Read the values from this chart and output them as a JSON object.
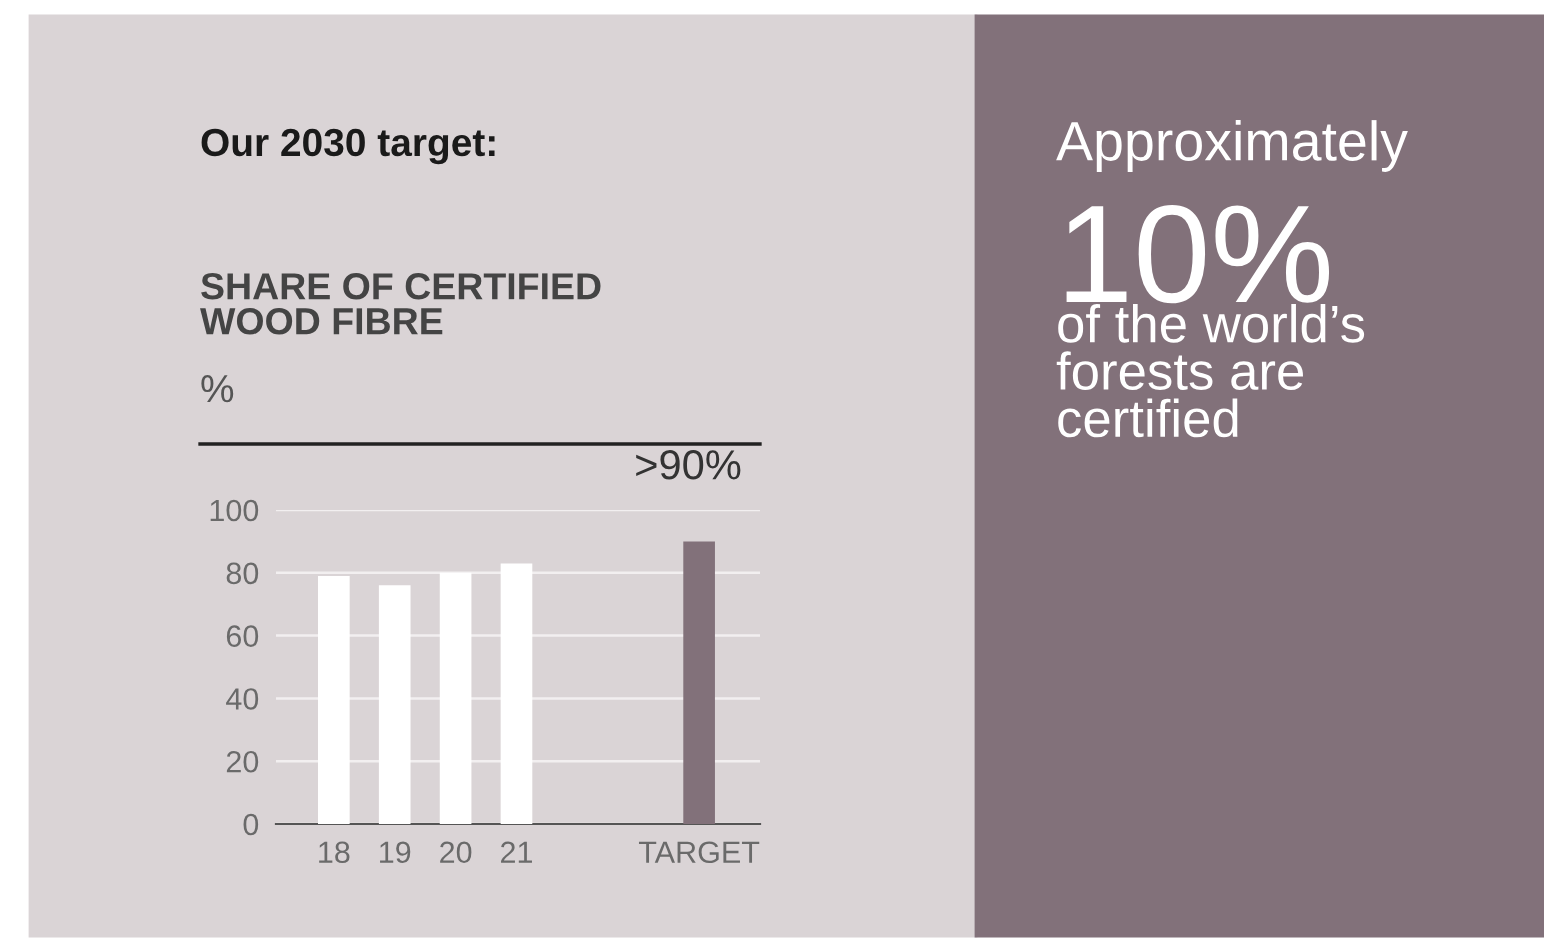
{
  "chart_data": {
    "type": "bar",
    "title": "Our 2030 target:",
    "subtitle": "SHARE OF CERTIFIED\nWOOD FIBRE",
    "ylabel": "%",
    "categories": [
      "18",
      "19",
      "20",
      "21",
      null,
      null,
      "TARGET"
    ],
    "values": [
      79,
      76,
      80,
      83,
      null,
      null,
      90
    ],
    "colors": [
      "#ffffff",
      "#ffffff",
      "#ffffff",
      "#ffffff",
      "#ffffff",
      "#ffffff",
      "#82717a"
    ],
    "value_labels": [
      null,
      null,
      null,
      null,
      null,
      null,
      ">90%"
    ],
    "ylim": [
      0,
      100
    ],
    "yticks": [
      0,
      20,
      40,
      60,
      80,
      100
    ],
    "grid": "y",
    "annotations": [
      "Approximately",
      "10%",
      "of the world’s\nforests are\ncertified"
    ]
  }
}
